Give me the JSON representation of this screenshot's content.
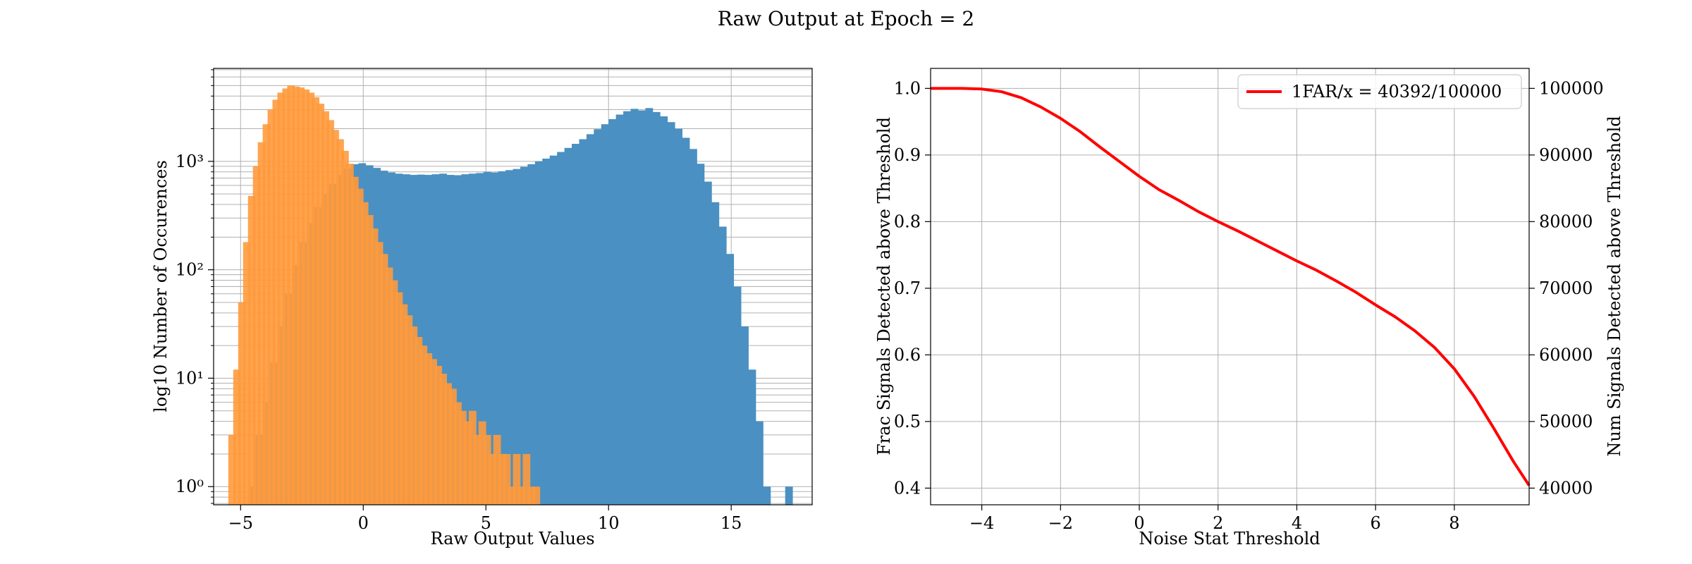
{
  "figure": {
    "suptitle": "Raw Output at Epoch = 2"
  },
  "chart_data": [
    {
      "type": "histogram",
      "xlabel": "Raw Output Values",
      "ylabel": "log10 Number of Occurences",
      "xlim": [
        -6.1,
        18.3
      ],
      "ylim": [
        0.68,
        7200
      ],
      "yscale": "log",
      "grid": true,
      "xticks": [
        -5,
        0,
        5,
        10,
        15
      ],
      "xtick_labels": [
        "−5",
        "0",
        "5",
        "10",
        "15"
      ],
      "yticks": [
        1,
        10,
        100,
        1000
      ],
      "ytick_labels": [
        "10⁰",
        "10¹",
        "10²",
        "10³"
      ],
      "bin_width": 0.3,
      "series": [
        {
          "color": "#4a90c2",
          "bins": [
            {
              "x0": -4.7,
              "count": 1
            },
            {
              "x0": -4.4,
              "count": 3
            },
            {
              "x0": -4.1,
              "count": 6
            },
            {
              "x0": -3.8,
              "count": 14
            },
            {
              "x0": -3.5,
              "count": 30
            },
            {
              "x0": -3.2,
              "count": 60
            },
            {
              "x0": -2.9,
              "count": 110
            },
            {
              "x0": -2.6,
              "count": 180
            },
            {
              "x0": -2.3,
              "count": 270
            },
            {
              "x0": -2.0,
              "count": 380
            },
            {
              "x0": -1.7,
              "count": 500
            },
            {
              "x0": -1.4,
              "count": 620
            },
            {
              "x0": -1.1,
              "count": 750
            },
            {
              "x0": -0.8,
              "count": 860
            },
            {
              "x0": -0.5,
              "count": 940
            },
            {
              "x0": -0.2,
              "count": 960
            },
            {
              "x0": 0.1,
              "count": 920
            },
            {
              "x0": 0.4,
              "count": 870
            },
            {
              "x0": 0.7,
              "count": 820
            },
            {
              "x0": 1.0,
              "count": 790
            },
            {
              "x0": 1.3,
              "count": 770
            },
            {
              "x0": 1.6,
              "count": 760
            },
            {
              "x0": 1.9,
              "count": 750
            },
            {
              "x0": 2.2,
              "count": 755
            },
            {
              "x0": 2.5,
              "count": 750
            },
            {
              "x0": 2.8,
              "count": 760
            },
            {
              "x0": 3.1,
              "count": 770
            },
            {
              "x0": 3.4,
              "count": 750
            },
            {
              "x0": 3.7,
              "count": 745
            },
            {
              "x0": 4.0,
              "count": 760
            },
            {
              "x0": 4.3,
              "count": 770
            },
            {
              "x0": 4.6,
              "count": 780
            },
            {
              "x0": 4.9,
              "count": 800
            },
            {
              "x0": 5.2,
              "count": 790
            },
            {
              "x0": 5.5,
              "count": 810
            },
            {
              "x0": 5.8,
              "count": 830
            },
            {
              "x0": 6.1,
              "count": 850
            },
            {
              "x0": 6.4,
              "count": 890
            },
            {
              "x0": 6.7,
              "count": 940
            },
            {
              "x0": 7.0,
              "count": 1000
            },
            {
              "x0": 7.3,
              "count": 1060
            },
            {
              "x0": 7.6,
              "count": 1130
            },
            {
              "x0": 7.9,
              "count": 1220
            },
            {
              "x0": 8.2,
              "count": 1330
            },
            {
              "x0": 8.5,
              "count": 1450
            },
            {
              "x0": 8.8,
              "count": 1600
            },
            {
              "x0": 9.1,
              "count": 1780
            },
            {
              "x0": 9.4,
              "count": 1980
            },
            {
              "x0": 9.7,
              "count": 2200
            },
            {
              "x0": 10.0,
              "count": 2450
            },
            {
              "x0": 10.3,
              "count": 2700
            },
            {
              "x0": 10.6,
              "count": 2900
            },
            {
              "x0": 10.9,
              "count": 3050
            },
            {
              "x0": 11.2,
              "count": 2950
            },
            {
              "x0": 11.5,
              "count": 3100
            },
            {
              "x0": 11.8,
              "count": 2850
            },
            {
              "x0": 12.1,
              "count": 2600
            },
            {
              "x0": 12.4,
              "count": 2300
            },
            {
              "x0": 12.7,
              "count": 2000
            },
            {
              "x0": 13.0,
              "count": 1650
            },
            {
              "x0": 13.3,
              "count": 1300
            },
            {
              "x0": 13.6,
              "count": 950
            },
            {
              "x0": 13.9,
              "count": 650
            },
            {
              "x0": 14.2,
              "count": 420
            },
            {
              "x0": 14.5,
              "count": 250
            },
            {
              "x0": 14.8,
              "count": 140
            },
            {
              "x0": 15.1,
              "count": 70
            },
            {
              "x0": 15.4,
              "count": 30
            },
            {
              "x0": 15.7,
              "count": 12
            },
            {
              "x0": 16.0,
              "count": 4
            },
            {
              "x0": 16.3,
              "count": 1
            },
            {
              "x0": 17.2,
              "count": 1
            }
          ]
        },
        {
          "color": "#ff9a3c",
          "bins": [
            {
              "x0": -5.5,
              "count": 3
            },
            {
              "x0": -5.3,
              "count": 12
            },
            {
              "x0": -5.1,
              "count": 50
            },
            {
              "x0": -4.9,
              "count": 180
            },
            {
              "x0": -4.7,
              "count": 480
            },
            {
              "x0": -4.5,
              "count": 900
            },
            {
              "x0": -4.3,
              "count": 1500
            },
            {
              "x0": -4.1,
              "count": 2200
            },
            {
              "x0": -3.9,
              "count": 3000
            },
            {
              "x0": -3.7,
              "count": 3700
            },
            {
              "x0": -3.5,
              "count": 4300
            },
            {
              "x0": -3.3,
              "count": 4700
            },
            {
              "x0": -3.1,
              "count": 5000
            },
            {
              "x0": -2.9,
              "count": 4900
            },
            {
              "x0": -2.7,
              "count": 4800
            },
            {
              "x0": -2.5,
              "count": 4600
            },
            {
              "x0": -2.3,
              "count": 4300
            },
            {
              "x0": -2.1,
              "count": 3900
            },
            {
              "x0": -1.9,
              "count": 3400
            },
            {
              "x0": -1.7,
              "count": 2900
            },
            {
              "x0": -1.5,
              "count": 2400
            },
            {
              "x0": -1.3,
              "count": 1950
            },
            {
              "x0": -1.1,
              "count": 1600
            },
            {
              "x0": -0.9,
              "count": 1250
            },
            {
              "x0": -0.7,
              "count": 950
            },
            {
              "x0": -0.5,
              "count": 720
            },
            {
              "x0": -0.3,
              "count": 560
            },
            {
              "x0": -0.1,
              "count": 420
            },
            {
              "x0": 0.1,
              "count": 320
            },
            {
              "x0": 0.3,
              "count": 240
            },
            {
              "x0": 0.5,
              "count": 180
            },
            {
              "x0": 0.7,
              "count": 140
            },
            {
              "x0": 0.9,
              "count": 105
            },
            {
              "x0": 1.1,
              "count": 80
            },
            {
              "x0": 1.3,
              "count": 62
            },
            {
              "x0": 1.5,
              "count": 48
            },
            {
              "x0": 1.7,
              "count": 38
            },
            {
              "x0": 1.9,
              "count": 30
            },
            {
              "x0": 2.1,
              "count": 24
            },
            {
              "x0": 2.3,
              "count": 20
            },
            {
              "x0": 2.5,
              "count": 17
            },
            {
              "x0": 2.7,
              "count": 15
            },
            {
              "x0": 2.9,
              "count": 13
            },
            {
              "x0": 3.1,
              "count": 11
            },
            {
              "x0": 3.3,
              "count": 9
            },
            {
              "x0": 3.5,
              "count": 8
            },
            {
              "x0": 3.7,
              "count": 6
            },
            {
              "x0": 3.9,
              "count": 5
            },
            {
              "x0": 4.1,
              "count": 4
            },
            {
              "x0": 4.3,
              "count": 5
            },
            {
              "x0": 4.5,
              "count": 3
            },
            {
              "x0": 4.7,
              "count": 4
            },
            {
              "x0": 4.9,
              "count": 3
            },
            {
              "x0": 5.1,
              "count": 2
            },
            {
              "x0": 5.3,
              "count": 3
            },
            {
              "x0": 5.5,
              "count": 2
            },
            {
              "x0": 5.7,
              "count": 2
            },
            {
              "x0": 5.9,
              "count": 1
            },
            {
              "x0": 6.1,
              "count": 2
            },
            {
              "x0": 6.3,
              "count": 1
            },
            {
              "x0": 6.5,
              "count": 2
            },
            {
              "x0": 6.7,
              "count": 1
            },
            {
              "x0": 6.9,
              "count": 1
            }
          ]
        }
      ]
    },
    {
      "type": "line",
      "xlabel": "Noise Stat Threshold",
      "ylabel": "Frac Signals Detected above Threshold",
      "y2label": "Num Signals Detected above Threshold",
      "xlim": [
        -5.3,
        9.9
      ],
      "ylim": [
        0.375,
        1.03
      ],
      "y2lim": [
        37500,
        103000
      ],
      "grid": true,
      "legend_location": "upper right",
      "xticks": [
        -4,
        -2,
        0,
        2,
        4,
        6,
        8
      ],
      "xtick_labels": [
        "−4",
        "−2",
        "0",
        "2",
        "4",
        "6",
        "8"
      ],
      "yticks": [
        0.4,
        0.5,
        0.6,
        0.7,
        0.8,
        0.9,
        1.0
      ],
      "ytick_labels": [
        "0.4",
        "0.5",
        "0.6",
        "0.7",
        "0.8",
        "0.9",
        "1.0"
      ],
      "y2ticks": [
        40000,
        50000,
        60000,
        70000,
        80000,
        90000,
        100000
      ],
      "y2tick_labels": [
        "40000",
        "50000",
        "60000",
        "70000",
        "80000",
        "90000",
        "100000"
      ],
      "series": [
        {
          "name": "1FAR/x = 40392/100000",
          "color": "#ff0000",
          "x": [
            -5.3,
            -4.5,
            -4.0,
            -3.5,
            -3.0,
            -2.5,
            -2.0,
            -1.5,
            -1.0,
            -0.5,
            0.0,
            0.5,
            1.0,
            1.5,
            2.0,
            2.5,
            3.0,
            3.5,
            4.0,
            4.5,
            5.0,
            5.5,
            6.0,
            6.5,
            7.0,
            7.5,
            8.0,
            8.5,
            9.0,
            9.5,
            9.9
          ],
          "y": [
            1.0,
            1.0,
            0.999,
            0.995,
            0.986,
            0.972,
            0.955,
            0.935,
            0.912,
            0.89,
            0.868,
            0.848,
            0.832,
            0.815,
            0.8,
            0.786,
            0.771,
            0.756,
            0.741,
            0.727,
            0.711,
            0.694,
            0.675,
            0.657,
            0.636,
            0.611,
            0.579,
            0.538,
            0.49,
            0.44,
            0.404
          ]
        }
      ]
    }
  ]
}
